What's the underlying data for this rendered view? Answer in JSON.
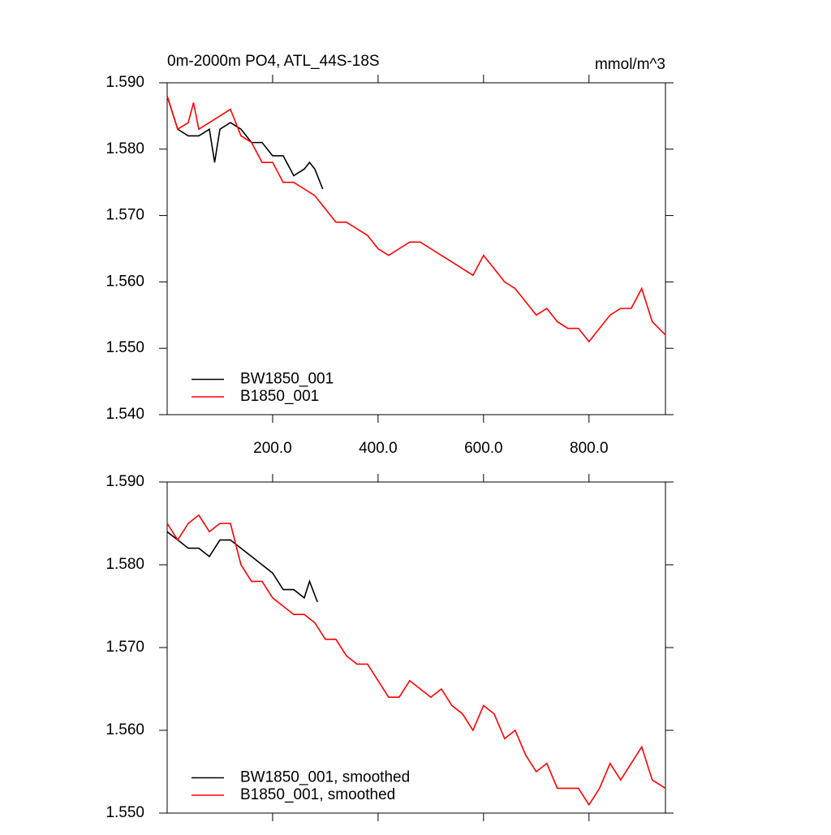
{
  "chart_data": [
    {
      "type": "line",
      "title": "0m-2000m PO4, ATL_44S-18S",
      "units": "mmol/m^3",
      "xlim": [
        0,
        945
      ],
      "ylim": [
        1.54,
        1.59
      ],
      "xticks": [
        {
          "value": 200,
          "label": "200.0"
        },
        {
          "value": 400,
          "label": "400.0"
        },
        {
          "value": 600,
          "label": "600.0"
        },
        {
          "value": 800,
          "label": "800.0"
        }
      ],
      "yticks": [
        {
          "value": 1.54,
          "label": "1.540"
        },
        {
          "value": 1.55,
          "label": "1.550"
        },
        {
          "value": 1.56,
          "label": "1.560"
        },
        {
          "value": 1.57,
          "label": "1.570"
        },
        {
          "value": 1.58,
          "label": "1.580"
        },
        {
          "value": 1.59,
          "label": "1.590"
        }
      ],
      "legend": "lower left",
      "series": [
        {
          "name": "BW1850_001",
          "color": "#000000",
          "x": [
            0,
            20,
            40,
            60,
            80,
            90,
            100,
            120,
            140,
            160,
            180,
            200,
            220,
            240,
            260,
            270,
            280,
            295
          ],
          "values": [
            1.588,
            1.583,
            1.582,
            1.582,
            1.583,
            1.578,
            1.583,
            1.584,
            1.583,
            1.581,
            1.581,
            1.579,
            1.579,
            1.576,
            1.577,
            1.578,
            1.577,
            1.574
          ]
        },
        {
          "name": "B1850_001",
          "color": "#ff0000",
          "x": [
            0,
            20,
            40,
            50,
            60,
            80,
            100,
            120,
            140,
            160,
            180,
            200,
            220,
            240,
            260,
            280,
            300,
            320,
            340,
            360,
            380,
            400,
            420,
            440,
            460,
            480,
            500,
            520,
            540,
            560,
            580,
            600,
            620,
            640,
            660,
            680,
            700,
            720,
            740,
            760,
            780,
            800,
            820,
            840,
            860,
            880,
            900,
            920,
            945
          ],
          "values": [
            1.588,
            1.583,
            1.584,
            1.587,
            1.583,
            1.584,
            1.585,
            1.586,
            1.582,
            1.581,
            1.578,
            1.578,
            1.575,
            1.575,
            1.574,
            1.573,
            1.571,
            1.569,
            1.569,
            1.568,
            1.567,
            1.565,
            1.564,
            1.565,
            1.566,
            1.566,
            1.565,
            1.564,
            1.563,
            1.562,
            1.561,
            1.564,
            1.562,
            1.56,
            1.559,
            1.557,
            1.555,
            1.556,
            1.554,
            1.553,
            1.553,
            1.551,
            1.553,
            1.555,
            1.556,
            1.556,
            1.559,
            1.554,
            1.552
          ]
        }
      ]
    },
    {
      "type": "line",
      "xlim": [
        0,
        945
      ],
      "ylim": [
        1.55,
        1.59
      ],
      "xticks": [
        200,
        400,
        600,
        800
      ],
      "xtick_labels": false,
      "yticks": [
        {
          "value": 1.55,
          "label": "1.550"
        },
        {
          "value": 1.56,
          "label": "1.560"
        },
        {
          "value": 1.57,
          "label": "1.570"
        },
        {
          "value": 1.58,
          "label": "1.580"
        },
        {
          "value": 1.59,
          "label": "1.590"
        }
      ],
      "legend": "lower left",
      "series": [
        {
          "name": "BW1850_001, smoothed",
          "color": "#000000",
          "x": [
            0,
            20,
            40,
            60,
            80,
            100,
            120,
            140,
            160,
            180,
            200,
            220,
            240,
            260,
            270,
            285
          ],
          "values": [
            1.584,
            1.583,
            1.582,
            1.582,
            1.581,
            1.583,
            1.583,
            1.582,
            1.581,
            1.58,
            1.579,
            1.577,
            1.577,
            1.576,
            1.578,
            1.5755
          ]
        },
        {
          "name": "B1850_001, smoothed",
          "color": "#ff0000",
          "x": [
            0,
            20,
            40,
            60,
            80,
            100,
            120,
            140,
            160,
            180,
            200,
            220,
            240,
            260,
            280,
            300,
            320,
            340,
            360,
            380,
            400,
            420,
            440,
            460,
            480,
            500,
            520,
            540,
            560,
            580,
            600,
            620,
            640,
            660,
            680,
            700,
            720,
            740,
            760,
            780,
            800,
            820,
            840,
            860,
            880,
            900,
            920,
            945
          ],
          "values": [
            1.585,
            1.583,
            1.585,
            1.586,
            1.584,
            1.585,
            1.585,
            1.58,
            1.578,
            1.578,
            1.576,
            1.575,
            1.574,
            1.574,
            1.573,
            1.571,
            1.571,
            1.569,
            1.568,
            1.568,
            1.566,
            1.564,
            1.564,
            1.566,
            1.565,
            1.564,
            1.565,
            1.563,
            1.562,
            1.56,
            1.563,
            1.562,
            1.559,
            1.56,
            1.557,
            1.555,
            1.556,
            1.553,
            1.553,
            1.553,
            1.551,
            1.553,
            1.556,
            1.554,
            1.556,
            1.558,
            1.554,
            1.553
          ]
        }
      ]
    }
  ]
}
